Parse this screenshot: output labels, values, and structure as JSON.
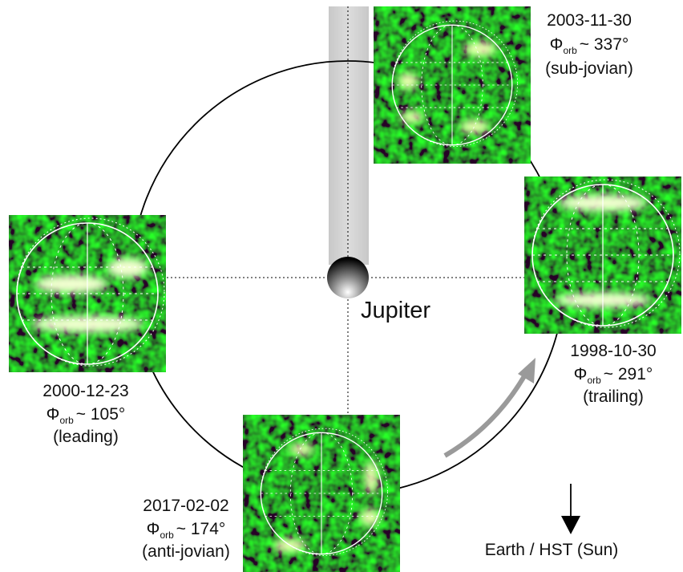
{
  "figure": {
    "center_label": "Jupiter",
    "direction_label": "Earth / HST (Sun)",
    "observations": [
      {
        "date": "2003-11-30",
        "symbol": "Φ",
        "subscript": "orb",
        "phase": "~ 337°",
        "location": "(sub-jovian)"
      },
      {
        "date": "1998-10-30",
        "symbol": "Φ",
        "subscript": "orb",
        "phase": "~ 291°",
        "location": "(trailing)"
      },
      {
        "date": "2000-12-23",
        "symbol": "Φ",
        "subscript": "orb",
        "phase": "~ 105°",
        "location": "(leading)"
      },
      {
        "date": "2017-02-02",
        "symbol": "Φ",
        "subscript": "orb",
        "phase": "~ 174°",
        "location": "(anti-jovian)"
      }
    ]
  }
}
